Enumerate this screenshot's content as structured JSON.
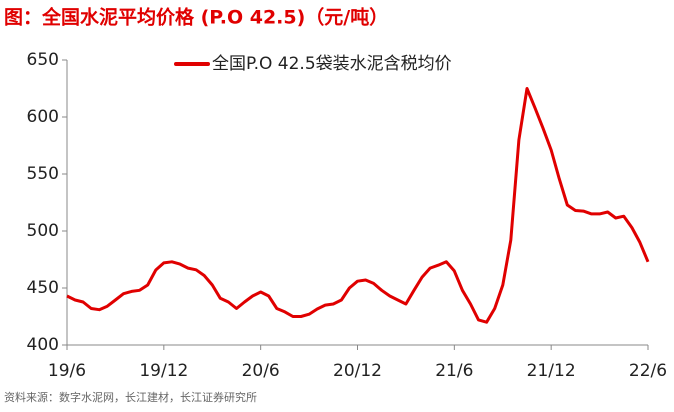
{
  "chart_data": {
    "type": "line",
    "title": "图：全国水泥平均价格 (P.O 42.5)（元/吨）",
    "source": "资料来源：数字水泥网，长江建材，长江证券研究所",
    "categories": [
      "19/6",
      null,
      null,
      null,
      null,
      null,
      null,
      null,
      null,
      null,
      null,
      null,
      "19/12",
      null,
      null,
      null,
      null,
      null,
      null,
      null,
      null,
      null,
      null,
      null,
      "20/6",
      null,
      null,
      null,
      null,
      null,
      null,
      null,
      null,
      null,
      null,
      null,
      "20/12",
      null,
      null,
      null,
      null,
      null,
      null,
      null,
      null,
      null,
      null,
      null,
      "21/6",
      null,
      null,
      null,
      null,
      null,
      null,
      null,
      null,
      null,
      null,
      null,
      "21/12",
      null,
      null,
      null,
      null,
      null,
      null,
      null,
      null,
      null,
      null,
      null,
      "22/6"
    ],
    "series": [
      {
        "name": "全国P.O 42.5袋装水泥含税均价",
        "color": "#e00000",
        "values": [
          443,
          439.5,
          437.7,
          432,
          431,
          434,
          439.5,
          445,
          447,
          448,
          452.6,
          465.8,
          472,
          473,
          471,
          467.5,
          466,
          461,
          452.6,
          441,
          437.7,
          432,
          437.7,
          443,
          446.5,
          443,
          432,
          429,
          425,
          425,
          427,
          431.6,
          435,
          436,
          439.5,
          450,
          456,
          457,
          454,
          448,
          443,
          439.5,
          436,
          448,
          459.6,
          467.5,
          470,
          473,
          465,
          448,
          436,
          422,
          420,
          432,
          452.6,
          492,
          580,
          625,
          608,
          590,
          571,
          546,
          522.8,
          518,
          517.5,
          515,
          515,
          516.7,
          511.4,
          513,
          503,
          490,
          473
        ]
      }
    ],
    "ylim": [
      400,
      650
    ],
    "yticks": [
      400,
      450,
      500,
      550,
      600,
      650
    ],
    "legend": "top"
  }
}
